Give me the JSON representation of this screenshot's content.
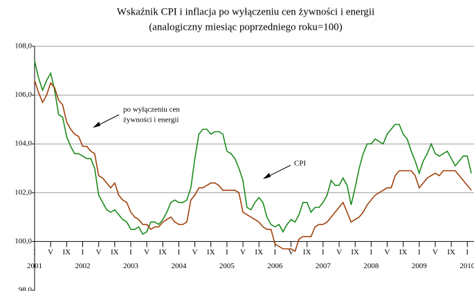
{
  "chart_data": {
    "type": "line",
    "title": [
      "Wskaźnik CPI i inflacja po wyłączeniu cen żywności i energii",
      "(analogiczny miesiąc poprzedniego roku=100)"
    ],
    "categories": [
      "I",
      null,
      null,
      null,
      "V",
      null,
      null,
      null,
      "IX",
      null,
      null,
      null,
      "I",
      null,
      null,
      null,
      "V",
      null,
      null,
      null,
      "IX",
      null,
      null,
      null,
      "I",
      null,
      null,
      null,
      "V",
      null,
      null,
      null,
      "IX",
      null,
      null,
      null,
      "I",
      null,
      null,
      null,
      "V",
      null,
      null,
      null,
      "IX",
      null,
      null,
      null,
      "I",
      null,
      null,
      null,
      "V",
      null,
      null,
      null,
      "IX",
      null,
      null,
      null,
      "I",
      null,
      null,
      null,
      "V",
      null,
      null,
      null,
      "IX",
      null,
      null,
      null,
      "I",
      null,
      null,
      null,
      "V",
      null,
      null,
      null,
      "IX",
      null,
      null,
      null,
      "I",
      null,
      null,
      null,
      "V",
      null,
      null,
      null,
      "IX",
      null,
      null,
      null,
      "I",
      null,
      null,
      null,
      "V",
      null,
      null,
      null,
      "IX",
      null,
      null,
      null,
      "I",
      null
    ],
    "years": [
      "2001",
      "2002",
      "2003",
      "2004",
      "2005",
      "2006",
      "2007",
      "2008",
      "2009",
      "2010"
    ],
    "series": [
      {
        "color": "#1a8a1a",
        "values": [
          107.4,
          106.7,
          106.2,
          106.6,
          106.9,
          106.2,
          105.2,
          105.1,
          104.3,
          103.9,
          103.6,
          103.6,
          103.5,
          103.4,
          103.4,
          103.0,
          101.9,
          101.6,
          101.3,
          101.2,
          101.3,
          101.1,
          100.9,
          100.8,
          100.5,
          100.5,
          100.6,
          100.3,
          100.4,
          100.8,
          100.8,
          100.7,
          100.9,
          101.2,
          101.6,
          101.7,
          101.6,
          101.6,
          101.7,
          102.2,
          103.4,
          104.4,
          104.6,
          104.6,
          104.4,
          104.5,
          104.5,
          104.4,
          103.7,
          103.6,
          103.4,
          103.0,
          102.5,
          101.4,
          101.3,
          101.6,
          101.8,
          101.6,
          101.0,
          100.7,
          100.6,
          100.7,
          100.4,
          100.7,
          100.9,
          100.8,
          101.1,
          101.6,
          101.6,
          101.2,
          101.4,
          101.4,
          101.6,
          101.9,
          102.5,
          102.3,
          102.3,
          102.6,
          102.3,
          101.5,
          102.2,
          103.0,
          103.6,
          104.0,
          104.0,
          104.2,
          104.1,
          104.0,
          104.4,
          104.6,
          104.8,
          104.8,
          104.4,
          104.2,
          103.7,
          103.3,
          102.8,
          103.3,
          103.6,
          104.0,
          103.6,
          103.5,
          103.6,
          103.7,
          103.4,
          103.1,
          103.3,
          103.5,
          103.5,
          102.8
        ]
      },
      {
        "color": "#a0400a",
        "values": [
          106.6,
          106.1,
          105.7,
          106.0,
          106.5,
          106.3,
          105.8,
          105.6,
          104.9,
          104.6,
          104.4,
          104.3,
          103.9,
          103.9,
          103.7,
          103.6,
          102.7,
          102.6,
          102.4,
          102.2,
          102.4,
          101.9,
          101.7,
          101.6,
          101.2,
          101.0,
          100.9,
          100.7,
          100.7,
          100.5,
          100.6,
          100.6,
          100.8,
          100.9,
          101.0,
          100.8,
          100.7,
          100.7,
          100.8,
          101.7,
          101.9,
          102.2,
          102.2,
          102.3,
          102.4,
          102.4,
          102.3,
          102.1,
          102.1,
          102.1,
          102.1,
          102.0,
          101.2,
          101.1,
          101.0,
          100.9,
          100.8,
          100.6,
          100.5,
          100.5,
          99.9,
          99.8,
          99.7,
          99.7,
          99.7,
          99.6,
          100.1,
          100.2,
          100.2,
          100.2,
          100.6,
          100.7,
          100.7,
          100.8,
          101.0,
          101.2,
          101.4,
          101.6,
          101.2,
          100.8,
          100.9,
          101.0,
          101.2,
          101.5,
          101.7,
          101.9,
          102.0,
          102.1,
          102.2,
          102.2,
          102.7,
          102.9,
          102.9,
          102.9,
          102.9,
          102.7,
          102.2,
          102.4,
          102.6,
          102.7,
          102.8,
          102.7,
          102.9,
          102.9,
          102.9,
          102.9,
          102.7,
          102.5,
          102.3,
          102.1
        ]
      }
    ],
    "annotations": [
      {
        "text": [
          "po wyłączeniu cen",
          "żywności i energii"
        ]
      },
      {
        "text": [
          "CPI"
        ]
      }
    ],
    "ylim": [
      98,
      108
    ],
    "yticks": [
      {
        "value": 98,
        "label": "98,0"
      },
      {
        "value": 100,
        "label": "100,0"
      },
      {
        "value": 102,
        "label": "102,0"
      },
      {
        "value": 104,
        "label": "104,0"
      },
      {
        "value": 106,
        "label": "106,0"
      },
      {
        "value": 108,
        "label": "108,0"
      }
    ],
    "grid": true
  }
}
